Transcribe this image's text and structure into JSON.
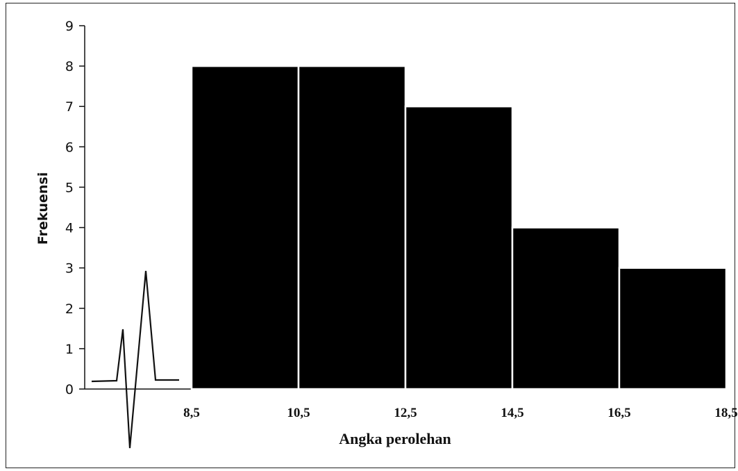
{
  "chart_data": {
    "type": "bar",
    "bins": [
      {
        "from": 8.5,
        "to": 10.5,
        "value": 8
      },
      {
        "from": 10.5,
        "to": 12.5,
        "value": 8
      },
      {
        "from": 12.5,
        "to": 14.5,
        "value": 7
      },
      {
        "from": 14.5,
        "to": 16.5,
        "value": 4
      },
      {
        "from": 16.5,
        "to": 18.5,
        "value": 3
      }
    ],
    "x_ticks": [
      "8,5",
      "10,5",
      "12,5",
      "14,5",
      "16,5",
      "18,5"
    ],
    "y_ticks": [
      "0",
      "1",
      "2",
      "3",
      "4",
      "5",
      "6",
      "7",
      "8",
      "9"
    ],
    "ylim": [
      0,
      9
    ],
    "xlabel": "Angka perolehan",
    "ylabel": "Frekuensi",
    "grid": false,
    "bar_color": "#000000",
    "bar_separator_color": "#ffffff"
  }
}
